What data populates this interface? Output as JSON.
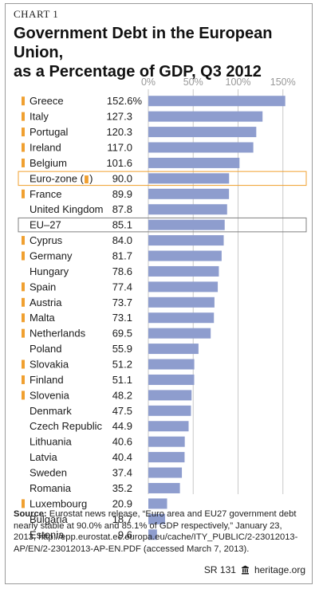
{
  "header": {
    "chart_label": "CHART 1",
    "title_line1": "Government Debt in the European Union,",
    "title_line2": "as a Percentage of GDP, Q3 2012"
  },
  "chart_data": {
    "type": "bar",
    "orientation": "horizontal",
    "title": "Government Debt in the European Union, as a Percentage of GDP, Q3 2012",
    "xlim": [
      0,
      150
    ],
    "x_ticks": [
      "0%",
      "50%",
      "100%",
      "150%"
    ],
    "grid": true,
    "categories": [
      "Greece",
      "Italy",
      "Portugal",
      "Ireland",
      "Belgium",
      "Euro-zone (▮)",
      "France",
      "United Kingdom",
      "EU–27",
      "Cyprus",
      "Germany",
      "Hungary",
      "Spain",
      "Austria",
      "Malta",
      "Netherlands",
      "Poland",
      "Slovakia",
      "Finland",
      "Slovenia",
      "Denmark",
      "Czech Republic",
      "Lithuania",
      "Latvia",
      "Sweden",
      "Romania",
      "Luxembourg",
      "Bulgaria",
      "Estonia"
    ],
    "values": [
      152.6,
      127.3,
      120.3,
      117.0,
      101.6,
      90.0,
      89.9,
      87.8,
      85.1,
      84.0,
      81.7,
      78.6,
      77.4,
      73.7,
      73.1,
      69.5,
      55.9,
      51.2,
      51.1,
      48.2,
      47.5,
      44.9,
      40.6,
      40.4,
      37.4,
      35.2,
      20.9,
      18.7,
      9.6
    ],
    "value_labels": [
      "152.6%",
      "127.3",
      "120.3",
      "117.0",
      "101.6",
      "90.0",
      "89.9",
      "87.8",
      "85.1",
      "84.0",
      "81.7",
      "78.6",
      "77.4",
      "73.7",
      "73.1",
      "69.5",
      "55.9",
      "51.2",
      "51.1",
      "48.2",
      "47.5",
      "44.9",
      "40.6",
      "40.4",
      "37.4",
      "35.2",
      "20.9",
      "18.7",
      "9.6"
    ],
    "eurozone_marker": [
      true,
      true,
      true,
      true,
      true,
      false,
      true,
      false,
      false,
      true,
      true,
      false,
      true,
      true,
      true,
      true,
      false,
      true,
      true,
      true,
      false,
      false,
      false,
      false,
      false,
      false,
      true,
      false,
      false
    ],
    "highlight_boxes": {
      "Euro-zone (▮)": "#f0a030",
      "EU–27": "#808080"
    },
    "colors": {
      "bar": "#8e9dce",
      "marker": "#f0a030",
      "grid": "#c8c8c8",
      "tick": "#999999"
    }
  },
  "source": {
    "label": "Source:",
    "text": "Eurostat news release, “Euro area and EU27 government debt nearly stable at 90.0% and 85.1% of GDP respectively,” January 23, 2013, http://epp.eurostat.ec.europa.eu/cache/ITY_PUBLIC/2-23012013-AP/EN/2-23012013-AP-EN.PDF (accessed March 7, 2013)."
  },
  "footer": {
    "report_id": "SR 131",
    "site": "heritage.org",
    "icon": "heritage-bell-icon"
  }
}
